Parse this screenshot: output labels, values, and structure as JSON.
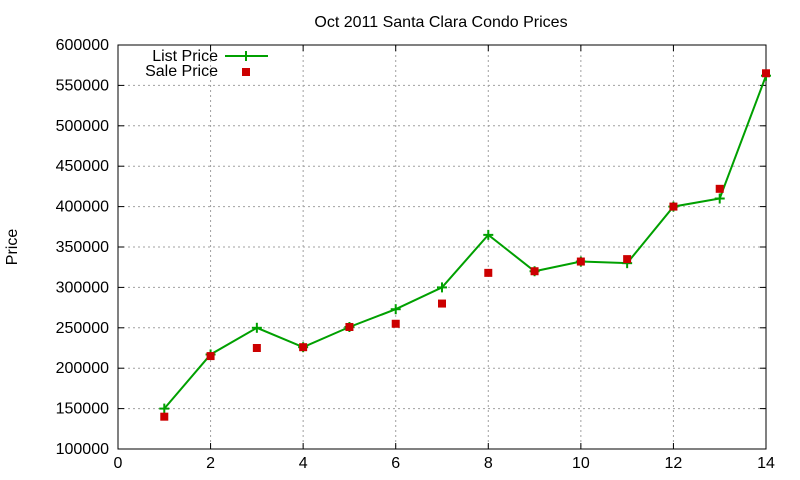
{
  "chart_data": {
    "type": "line",
    "title": "Oct 2011 Santa Clara Condo Prices",
    "xlabel": "",
    "ylabel": "Price",
    "xlim": [
      0,
      14
    ],
    "ylim": [
      100000,
      600000
    ],
    "xticks": [
      0,
      2,
      4,
      6,
      8,
      10,
      12,
      14
    ],
    "yticks": [
      100000,
      150000,
      200000,
      250000,
      300000,
      350000,
      400000,
      450000,
      500000,
      550000,
      600000
    ],
    "grid": true,
    "legend_position": "top-left",
    "series": [
      {
        "name": "List Price",
        "style": "line-with-plus-markers",
        "color": "#00a000",
        "x": [
          1,
          2,
          3,
          4,
          5,
          6,
          7,
          8,
          9,
          10,
          11,
          12,
          13,
          14
        ],
        "y": [
          150000,
          217000,
          250000,
          226000,
          251000,
          273000,
          300000,
          365000,
          320000,
          332000,
          330000,
          400000,
          410000,
          562000
        ]
      },
      {
        "name": "Sale Price",
        "style": "square-points",
        "color": "#cc0000",
        "x": [
          1,
          2,
          3,
          4,
          5,
          6,
          7,
          8,
          9,
          10,
          11,
          12,
          13,
          14
        ],
        "y": [
          140000,
          215000,
          225000,
          226000,
          251000,
          255000,
          280000,
          318000,
          320000,
          332000,
          335000,
          400000,
          422000,
          565000
        ]
      }
    ]
  }
}
